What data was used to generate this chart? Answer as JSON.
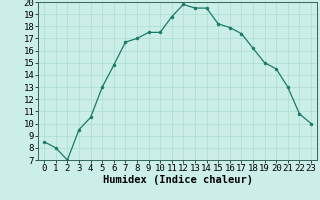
{
  "x": [
    0,
    1,
    2,
    3,
    4,
    5,
    6,
    7,
    8,
    9,
    10,
    11,
    12,
    13,
    14,
    15,
    16,
    17,
    18,
    19,
    20,
    21,
    22,
    23
  ],
  "y": [
    8.5,
    8.0,
    7.0,
    9.5,
    10.5,
    13.0,
    14.8,
    16.7,
    17.0,
    17.5,
    17.5,
    18.8,
    19.8,
    19.5,
    19.5,
    18.2,
    17.9,
    17.4,
    16.2,
    15.0,
    14.5,
    13.0,
    10.8,
    10.0
  ],
  "xlabel": "Humidex (Indice chaleur)",
  "xlim_lo": -0.5,
  "xlim_hi": 23.5,
  "ylim_lo": 7,
  "ylim_hi": 20,
  "yticks": [
    7,
    8,
    9,
    10,
    11,
    12,
    13,
    14,
    15,
    16,
    17,
    18,
    19,
    20
  ],
  "xticks": [
    0,
    1,
    2,
    3,
    4,
    5,
    6,
    7,
    8,
    9,
    10,
    11,
    12,
    13,
    14,
    15,
    16,
    17,
    18,
    19,
    20,
    21,
    22,
    23
  ],
  "line_color": "#1a7a6a",
  "marker_color": "#1a7a6a",
  "bg_color": "#cceee8",
  "grid_color": "#aaddcc",
  "xlabel_fontsize": 7.5,
  "tick_fontsize": 6.5
}
